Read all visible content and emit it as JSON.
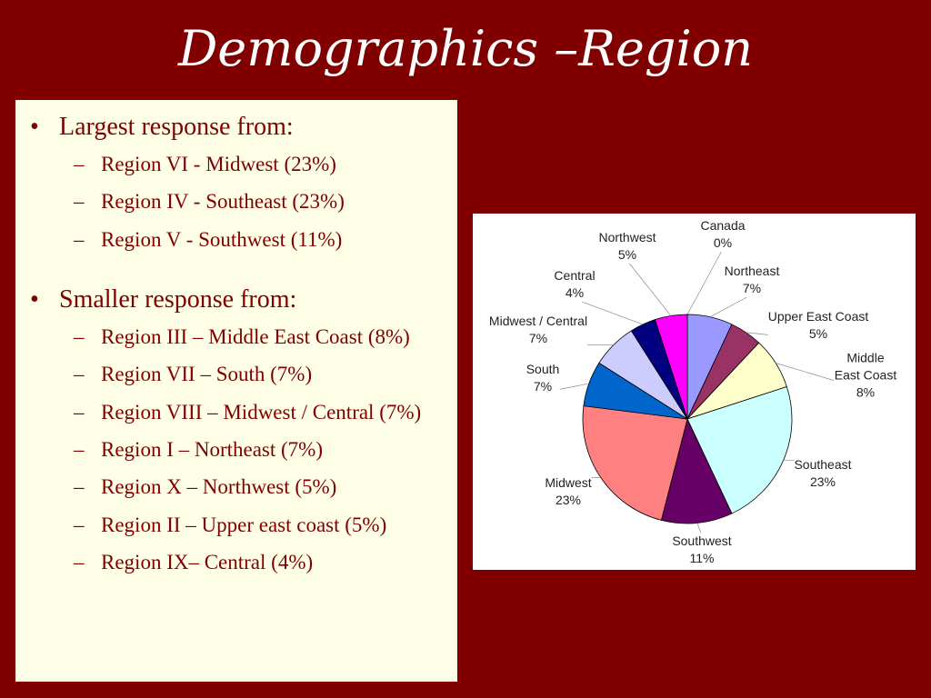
{
  "title": "Demographics –Region",
  "bullets": [
    {
      "text": "Largest response from:",
      "items": [
        "Region VI - Midwest (23%)",
        "Region IV - Southeast (23%)",
        "Region V - Southwest (11%)"
      ]
    },
    {
      "text": "Smaller response from:",
      "items": [
        "Region III – Middle East Coast (8%)",
        "Region VII – South (7%)",
        "Region VIII – Midwest / Central (7%)",
        "Region I – Northeast (7%)",
        "Region X – Northwest (5%)",
        "Region II – Upper east coast (5%)",
        "Region IX– Central (4%)"
      ]
    }
  ],
  "chart_data": {
    "type": "pie",
    "categories": [
      "Canada",
      "Northeast",
      "Upper East Coast",
      "Middle East Coast",
      "Southeast",
      "Southwest",
      "Midwest",
      "South",
      "Midwest / Central",
      "Central",
      "Northwest"
    ],
    "values": [
      0,
      7,
      5,
      8,
      23,
      11,
      23,
      7,
      7,
      4,
      5
    ],
    "value_labels": [
      "0%",
      "7%",
      "5%",
      "8%",
      "23%",
      "11%",
      "23%",
      "7%",
      "7%",
      "4%",
      "5%"
    ],
    "colors": [
      "#cccccc",
      "#9999ff",
      "#993366",
      "#ffffcc",
      "#ccffff",
      "#660066",
      "#ff8080",
      "#0066cc",
      "#ccccff",
      "#000080",
      "#ff00ff"
    ]
  }
}
